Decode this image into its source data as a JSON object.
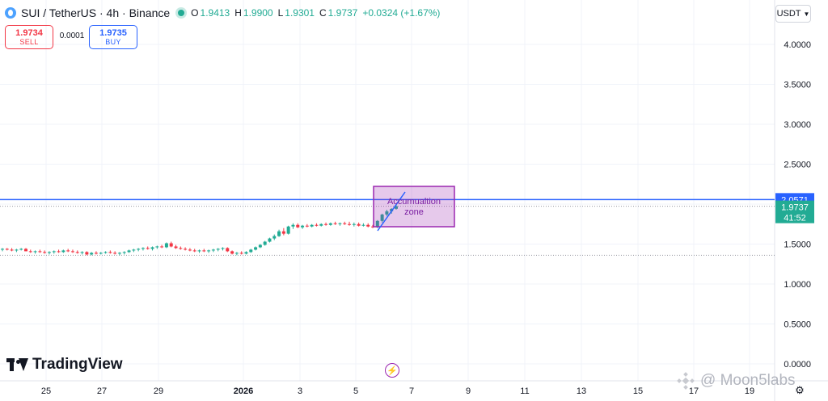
{
  "header": {
    "symbol_title": "SUI / TetherUS · 4h · Binance",
    "symbol_icon": "sui-logo-icon",
    "ohlc": {
      "o_label": "O",
      "o_value": "1.9413",
      "h_label": "H",
      "h_value": "1.9900",
      "l_label": "L",
      "l_value": "1.9301",
      "c_label": "C",
      "c_value": "1.9737",
      "change": "+0.0324 (+1.67%)"
    }
  },
  "trade": {
    "sell_price": "1.9734",
    "sell_label": "SELL",
    "buy_price": "1.9735",
    "buy_label": "BUY",
    "spread": "0.0001"
  },
  "currency": "USDT",
  "brand": "TradingView",
  "watermark": "@ Moon5labs",
  "annotation": {
    "text_line1": "Accumualtion",
    "text_line2": "zone",
    "color": "#9c27b0"
  },
  "colors": {
    "up": "#22ab94",
    "down": "#f23645",
    "line": "#2962ff"
  },
  "chart_data": {
    "type": "candlestick",
    "y_ticks": [
      "4.0000",
      "3.5000",
      "3.0000",
      "2.5000",
      "2.0000",
      "1.5000",
      "1.0000",
      "0.5000",
      "0.0000"
    ],
    "ylim": [
      0,
      4.0
    ],
    "x_ticks": [
      "25",
      "27",
      "29",
      "2026",
      "3",
      "5",
      "7",
      "9",
      "11",
      "13",
      "15",
      "17",
      "19"
    ],
    "horizontal_line": {
      "value": 2.0571,
      "label": "2.0571"
    },
    "last_price": {
      "value": 1.9737,
      "label": "1.9737",
      "countdown": "41:52"
    },
    "dotted_line": 1.36,
    "series": [
      {
        "values": [
          [
            1.43,
            1.45,
            1.41,
            1.44
          ],
          [
            1.44,
            1.45,
            1.42,
            1.43
          ],
          [
            1.43,
            1.45,
            1.41,
            1.42
          ],
          [
            1.42,
            1.44,
            1.4,
            1.43
          ],
          [
            1.43,
            1.45,
            1.42,
            1.44
          ],
          [
            1.44,
            1.45,
            1.41,
            1.41
          ],
          [
            1.41,
            1.43,
            1.39,
            1.4
          ],
          [
            1.4,
            1.42,
            1.38,
            1.41
          ],
          [
            1.41,
            1.43,
            1.39,
            1.4
          ],
          [
            1.4,
            1.42,
            1.38,
            1.39
          ],
          [
            1.39,
            1.41,
            1.37,
            1.4
          ],
          [
            1.4,
            1.42,
            1.38,
            1.41
          ],
          [
            1.41,
            1.43,
            1.39,
            1.4
          ],
          [
            1.4,
            1.43,
            1.39,
            1.42
          ],
          [
            1.42,
            1.44,
            1.4,
            1.41
          ],
          [
            1.41,
            1.43,
            1.39,
            1.4
          ],
          [
            1.4,
            1.42,
            1.38,
            1.39
          ],
          [
            1.39,
            1.41,
            1.37,
            1.4
          ],
          [
            1.4,
            1.41,
            1.36,
            1.37
          ],
          [
            1.37,
            1.4,
            1.36,
            1.39
          ],
          [
            1.39,
            1.41,
            1.37,
            1.38
          ],
          [
            1.38,
            1.4,
            1.37,
            1.39
          ],
          [
            1.39,
            1.41,
            1.38,
            1.4
          ],
          [
            1.4,
            1.42,
            1.38,
            1.39
          ],
          [
            1.39,
            1.41,
            1.37,
            1.38
          ],
          [
            1.38,
            1.4,
            1.36,
            1.39
          ],
          [
            1.39,
            1.41,
            1.37,
            1.4
          ],
          [
            1.4,
            1.43,
            1.39,
            1.42
          ],
          [
            1.42,
            1.44,
            1.4,
            1.43
          ],
          [
            1.43,
            1.45,
            1.41,
            1.44
          ],
          [
            1.44,
            1.46,
            1.42,
            1.45
          ],
          [
            1.45,
            1.47,
            1.43,
            1.44
          ],
          [
            1.44,
            1.47,
            1.42,
            1.46
          ],
          [
            1.46,
            1.48,
            1.44,
            1.47
          ],
          [
            1.47,
            1.49,
            1.45,
            1.46
          ],
          [
            1.46,
            1.52,
            1.45,
            1.51
          ],
          [
            1.51,
            1.53,
            1.46,
            1.47
          ],
          [
            1.47,
            1.49,
            1.44,
            1.45
          ],
          [
            1.45,
            1.47,
            1.43,
            1.44
          ],
          [
            1.44,
            1.46,
            1.42,
            1.43
          ],
          [
            1.43,
            1.45,
            1.41,
            1.42
          ],
          [
            1.42,
            1.44,
            1.4,
            1.41
          ],
          [
            1.41,
            1.43,
            1.39,
            1.42
          ],
          [
            1.42,
            1.44,
            1.4,
            1.41
          ],
          [
            1.41,
            1.43,
            1.39,
            1.42
          ],
          [
            1.42,
            1.44,
            1.4,
            1.43
          ],
          [
            1.43,
            1.45,
            1.41,
            1.44
          ],
          [
            1.44,
            1.46,
            1.42,
            1.45
          ],
          [
            1.45,
            1.46,
            1.4,
            1.41
          ],
          [
            1.41,
            1.42,
            1.37,
            1.38
          ],
          [
            1.38,
            1.4,
            1.36,
            1.39
          ],
          [
            1.39,
            1.41,
            1.37,
            1.38
          ],
          [
            1.38,
            1.41,
            1.37,
            1.4
          ],
          [
            1.4,
            1.44,
            1.39,
            1.43
          ],
          [
            1.43,
            1.47,
            1.42,
            1.46
          ],
          [
            1.46,
            1.5,
            1.45,
            1.49
          ],
          [
            1.49,
            1.54,
            1.48,
            1.53
          ],
          [
            1.53,
            1.58,
            1.52,
            1.57
          ],
          [
            1.57,
            1.62,
            1.55,
            1.6
          ],
          [
            1.6,
            1.68,
            1.59,
            1.66
          ],
          [
            1.66,
            1.7,
            1.61,
            1.63
          ],
          [
            1.63,
            1.73,
            1.62,
            1.72
          ],
          [
            1.72,
            1.76,
            1.69,
            1.74
          ],
          [
            1.74,
            1.76,
            1.7,
            1.71
          ],
          [
            1.71,
            1.74,
            1.69,
            1.73
          ],
          [
            1.73,
            1.75,
            1.71,
            1.72
          ],
          [
            1.72,
            1.75,
            1.71,
            1.74
          ],
          [
            1.74,
            1.76,
            1.72,
            1.73
          ],
          [
            1.73,
            1.76,
            1.72,
            1.75
          ],
          [
            1.75,
            1.77,
            1.73,
            1.74
          ],
          [
            1.74,
            1.77,
            1.73,
            1.76
          ],
          [
            1.76,
            1.78,
            1.74,
            1.75
          ],
          [
            1.75,
            1.77,
            1.73,
            1.76
          ],
          [
            1.76,
            1.78,
            1.74,
            1.75
          ],
          [
            1.75,
            1.78,
            1.73,
            1.74
          ],
          [
            1.74,
            1.77,
            1.72,
            1.75
          ],
          [
            1.75,
            1.77,
            1.72,
            1.73
          ],
          [
            1.73,
            1.76,
            1.72,
            1.74
          ],
          [
            1.74,
            1.76,
            1.71,
            1.72
          ],
          [
            1.72,
            1.74,
            1.7,
            1.71
          ],
          [
            1.71,
            1.8,
            1.7,
            1.79
          ],
          [
            1.79,
            1.88,
            1.77,
            1.87
          ],
          [
            1.87,
            1.93,
            1.85,
            1.91
          ],
          [
            1.91,
            1.95,
            1.88,
            1.94
          ],
          [
            1.9413,
            1.99,
            1.9301,
            1.9737
          ]
        ]
      }
    ]
  }
}
